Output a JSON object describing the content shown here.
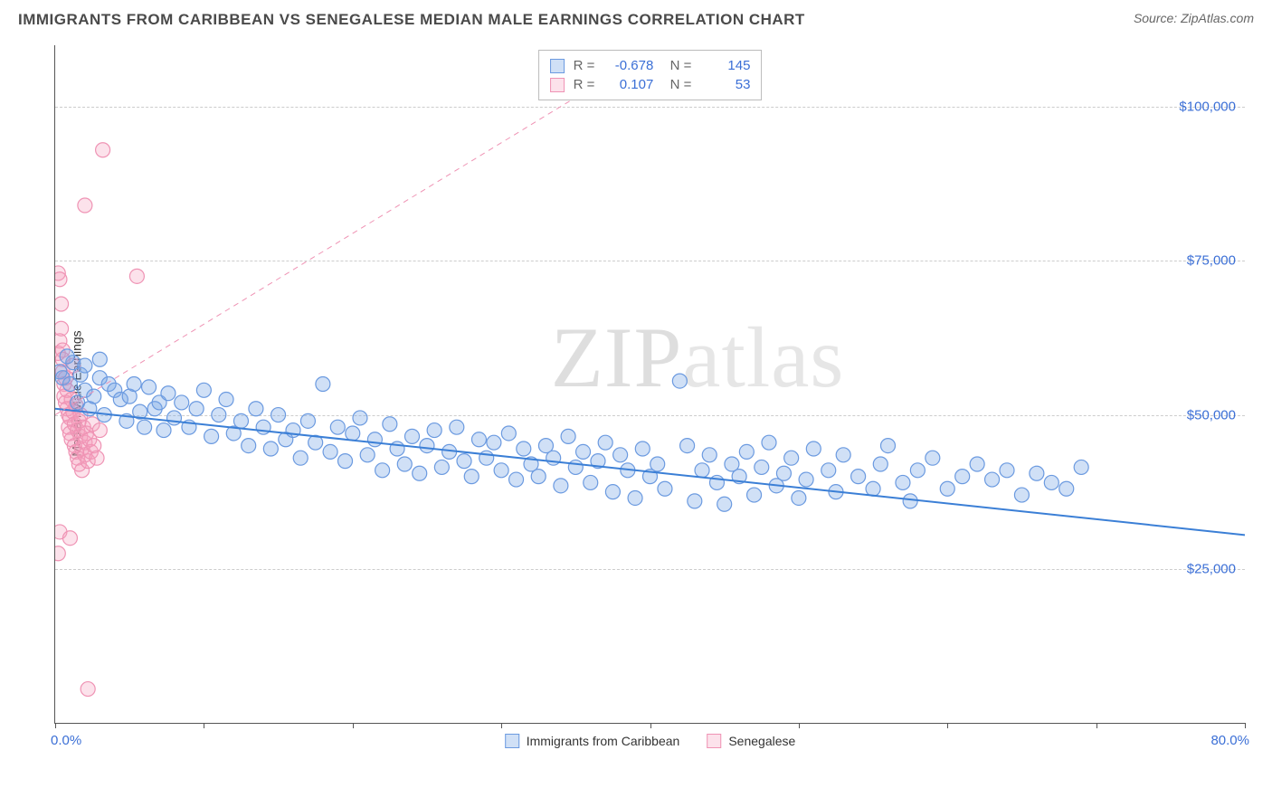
{
  "header": {
    "title": "IMMIGRANTS FROM CARIBBEAN VS SENEGALESE MEDIAN MALE EARNINGS CORRELATION CHART",
    "source_label": "Source: ",
    "source_name": "ZipAtlas.com"
  },
  "watermark": {
    "zip": "ZIP",
    "atlas": "atlas"
  },
  "chart": {
    "type": "scatter",
    "ylabel": "Median Male Earnings",
    "x_min_label": "0.0%",
    "x_max_label": "80.0%",
    "x_min": 0,
    "x_max": 80,
    "y_min": 0,
    "y_max": 110000,
    "y_gridlines": [
      25000,
      50000,
      75000,
      100000
    ],
    "y_tick_labels": [
      "$25,000",
      "$50,000",
      "$75,000",
      "$100,000"
    ],
    "x_ticks": [
      0,
      10,
      20,
      30,
      40,
      50,
      60,
      70,
      80
    ],
    "background_color": "#ffffff",
    "grid_color": "#cccccc",
    "axis_color": "#555555",
    "tick_label_color": "#3b6fd6",
    "marker_radius": 8,
    "marker_stroke_width": 1.2,
    "line_width": 2,
    "dash_line_width": 1,
    "series": [
      {
        "name": "Immigrants from Caribbean",
        "fill": "rgba(120,165,230,0.35)",
        "stroke": "#6b9ae0",
        "line_color": "#3b7fd6",
        "line_dash": "none",
        "trend": {
          "x1": 0,
          "y1": 51000,
          "x2": 80,
          "y2": 30500
        },
        "stats": {
          "R": "-0.678",
          "N": "145"
        },
        "points": [
          [
            0.3,
            57000
          ],
          [
            0.5,
            56000
          ],
          [
            1,
            55000
          ],
          [
            1.2,
            58500
          ],
          [
            1.5,
            52000
          ],
          [
            1.7,
            56500
          ],
          [
            2,
            54000
          ],
          [
            2.3,
            51000
          ],
          [
            2.6,
            53000
          ],
          [
            3,
            56000
          ],
          [
            3.3,
            50000
          ],
          [
            3.6,
            55000
          ],
          [
            4,
            54000
          ],
          [
            4.4,
            52500
          ],
          [
            4.8,
            49000
          ],
          [
            5,
            53000
          ],
          [
            5.3,
            55000
          ],
          [
            5.7,
            50500
          ],
          [
            6,
            48000
          ],
          [
            6.3,
            54500
          ],
          [
            6.7,
            51000
          ],
          [
            7,
            52000
          ],
          [
            7.3,
            47500
          ],
          [
            7.6,
            53500
          ],
          [
            8,
            49500
          ],
          [
            8.5,
            52000
          ],
          [
            9,
            48000
          ],
          [
            9.5,
            51000
          ],
          [
            10,
            54000
          ],
          [
            10.5,
            46500
          ],
          [
            11,
            50000
          ],
          [
            11.5,
            52500
          ],
          [
            12,
            47000
          ],
          [
            12.5,
            49000
          ],
          [
            13,
            45000
          ],
          [
            13.5,
            51000
          ],
          [
            14,
            48000
          ],
          [
            14.5,
            44500
          ],
          [
            15,
            50000
          ],
          [
            15.5,
            46000
          ],
          [
            16,
            47500
          ],
          [
            16.5,
            43000
          ],
          [
            17,
            49000
          ],
          [
            17.5,
            45500
          ],
          [
            18,
            55000
          ],
          [
            18.5,
            44000
          ],
          [
            19,
            48000
          ],
          [
            19.5,
            42500
          ],
          [
            20,
            47000
          ],
          [
            20.5,
            49500
          ],
          [
            21,
            43500
          ],
          [
            21.5,
            46000
          ],
          [
            22,
            41000
          ],
          [
            22.5,
            48500
          ],
          [
            23,
            44500
          ],
          [
            23.5,
            42000
          ],
          [
            24,
            46500
          ],
          [
            24.5,
            40500
          ],
          [
            25,
            45000
          ],
          [
            25.5,
            47500
          ],
          [
            26,
            41500
          ],
          [
            26.5,
            44000
          ],
          [
            27,
            48000
          ],
          [
            27.5,
            42500
          ],
          [
            28,
            40000
          ],
          [
            28.5,
            46000
          ],
          [
            29,
            43000
          ],
          [
            29.5,
            45500
          ],
          [
            30,
            41000
          ],
          [
            30.5,
            47000
          ],
          [
            31,
            39500
          ],
          [
            31.5,
            44500
          ],
          [
            32,
            42000
          ],
          [
            32.5,
            40000
          ],
          [
            33,
            45000
          ],
          [
            33.5,
            43000
          ],
          [
            34,
            38500
          ],
          [
            34.5,
            46500
          ],
          [
            35,
            41500
          ],
          [
            35.5,
            44000
          ],
          [
            36,
            39000
          ],
          [
            36.5,
            42500
          ],
          [
            37,
            45500
          ],
          [
            37.5,
            37500
          ],
          [
            38,
            43500
          ],
          [
            38.5,
            41000
          ],
          [
            39,
            36500
          ],
          [
            39.5,
            44500
          ],
          [
            40,
            40000
          ],
          [
            40.5,
            42000
          ],
          [
            41,
            38000
          ],
          [
            42,
            55500
          ],
          [
            42.5,
            45000
          ],
          [
            43,
            36000
          ],
          [
            43.5,
            41000
          ],
          [
            44,
            43500
          ],
          [
            44.5,
            39000
          ],
          [
            45,
            35500
          ],
          [
            45.5,
            42000
          ],
          [
            46,
            40000
          ],
          [
            46.5,
            44000
          ],
          [
            47,
            37000
          ],
          [
            47.5,
            41500
          ],
          [
            48,
            45500
          ],
          [
            48.5,
            38500
          ],
          [
            49,
            40500
          ],
          [
            49.5,
            43000
          ],
          [
            50,
            36500
          ],
          [
            50.5,
            39500
          ],
          [
            51,
            44500
          ],
          [
            52,
            41000
          ],
          [
            52.5,
            37500
          ],
          [
            53,
            43500
          ],
          [
            54,
            40000
          ],
          [
            55,
            38000
          ],
          [
            55.5,
            42000
          ],
          [
            56,
            45000
          ],
          [
            57,
            39000
          ],
          [
            57.5,
            36000
          ],
          [
            58,
            41000
          ],
          [
            59,
            43000
          ],
          [
            60,
            38000
          ],
          [
            61,
            40000
          ],
          [
            62,
            42000
          ],
          [
            63,
            39500
          ],
          [
            64,
            41000
          ],
          [
            65,
            37000
          ],
          [
            66,
            40500
          ],
          [
            67,
            39000
          ],
          [
            68,
            38000
          ],
          [
            69,
            41500
          ],
          [
            2,
            58000
          ],
          [
            3,
            59000
          ],
          [
            0.8,
            59500
          ]
        ]
      },
      {
        "name": "Senegalese",
        "fill": "rgba(245,160,190,0.30)",
        "stroke": "#ef93b4",
        "line_color": "#ef93b4",
        "line_dash": "6,5",
        "trend": {
          "x1": 0,
          "y1": 50000,
          "x2": 36,
          "y2": 103000
        },
        "stats": {
          "R": "0.107",
          "N": "53"
        },
        "points": [
          [
            0.2,
            73000
          ],
          [
            0.3,
            72000
          ],
          [
            0.4,
            64000
          ],
          [
            0.5,
            59000
          ],
          [
            0.5,
            57000
          ],
          [
            0.6,
            55000
          ],
          [
            0.6,
            53000
          ],
          [
            0.7,
            52000
          ],
          [
            0.7,
            56000
          ],
          [
            0.8,
            51000
          ],
          [
            0.8,
            54000
          ],
          [
            0.9,
            50000
          ],
          [
            0.9,
            48000
          ],
          [
            1.0,
            49500
          ],
          [
            1.0,
            47000
          ],
          [
            1.1,
            52500
          ],
          [
            1.1,
            46000
          ],
          [
            1.2,
            58000
          ],
          [
            1.2,
            50500
          ],
          [
            1.3,
            45000
          ],
          [
            1.3,
            48500
          ],
          [
            1.4,
            44000
          ],
          [
            1.4,
            51500
          ],
          [
            1.5,
            43000
          ],
          [
            1.5,
            47500
          ],
          [
            1.6,
            49000
          ],
          [
            1.6,
            42000
          ],
          [
            1.7,
            46500
          ],
          [
            1.7,
            50000
          ],
          [
            1.8,
            44500
          ],
          [
            1.8,
            41000
          ],
          [
            1.9,
            48000
          ],
          [
            2.0,
            45500
          ],
          [
            2.0,
            43500
          ],
          [
            2.1,
            47000
          ],
          [
            2.2,
            42500
          ],
          [
            2.3,
            46000
          ],
          [
            2.4,
            44000
          ],
          [
            2.5,
            48500
          ],
          [
            2.6,
            45000
          ],
          [
            2.8,
            43000
          ],
          [
            3.0,
            47500
          ],
          [
            3.2,
            93000
          ],
          [
            2.0,
            84000
          ],
          [
            0.3,
            31000
          ],
          [
            0.2,
            27500
          ],
          [
            1.0,
            30000
          ],
          [
            2.2,
            5500
          ],
          [
            5.5,
            72500
          ],
          [
            0.4,
            68000
          ],
          [
            0.2,
            60000
          ],
          [
            0.3,
            62000
          ],
          [
            0.5,
            60500
          ]
        ]
      }
    ]
  },
  "legend_bottom": [
    {
      "label": "Immigrants from Caribbean",
      "fill": "rgba(120,165,230,0.35)",
      "stroke": "#6b9ae0"
    },
    {
      "label": "Senegalese",
      "fill": "rgba(245,160,190,0.30)",
      "stroke": "#ef93b4"
    }
  ]
}
